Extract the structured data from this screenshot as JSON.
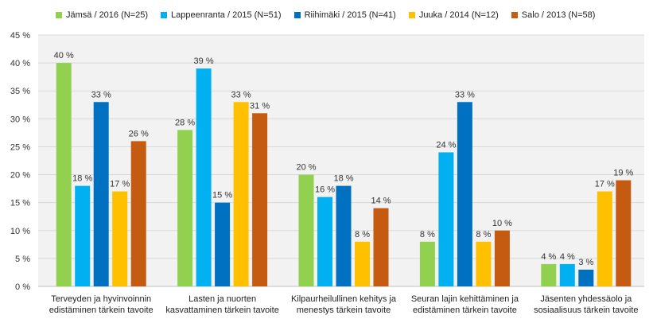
{
  "chart_data": {
    "type": "bar",
    "title": "",
    "xlabel": "",
    "ylabel": "",
    "ylim": [
      0,
      45
    ],
    "ytick_step": 5,
    "ytick_labels": [
      "0 %",
      "5 %",
      "10 %",
      "15 %",
      "20 %",
      "25 %",
      "30 %",
      "35 %",
      "40 %",
      "45 %"
    ],
    "grid": true,
    "legend_position": "top",
    "categories": [
      [
        "Terveyden ja hyvinvoinnin",
        "edistäminen tärkein tavoite"
      ],
      [
        "Lasten ja nuorten",
        "kasvattaminen tärkein tavoite"
      ],
      [
        "Kilpaurheilullinen kehitys ja",
        "menestys tärkein tavoite"
      ],
      [
        "Seuran lajin kehittäminen ja",
        "edistäminen tärkein tavoite"
      ],
      [
        "Jäsenten yhdessäolo ja",
        "sosiaalisuus tärkein tavoite"
      ]
    ],
    "series": [
      {
        "name": "Jämsä / 2016 (N=25)",
        "color": "#92d050",
        "values": [
          40,
          28,
          20,
          8,
          4
        ]
      },
      {
        "name": "Lappeenranta / 2015 (N=51)",
        "color": "#00b0f0",
        "values": [
          18,
          39,
          16,
          24,
          4
        ]
      },
      {
        "name": "Riihimäki / 2015 (N=41)",
        "color": "#0070c0",
        "values": [
          33,
          15,
          18,
          33,
          3
        ]
      },
      {
        "name": "Juuka / 2014 (N=12)",
        "color": "#ffc000",
        "values": [
          17,
          33,
          8,
          8,
          17
        ]
      },
      {
        "name": "Salo / 2013 (N=58)",
        "color": "#c55a11",
        "values": [
          26,
          31,
          14,
          10,
          19
        ]
      }
    ],
    "value_suffix": " %",
    "plot_background": "#f2f2f2"
  }
}
